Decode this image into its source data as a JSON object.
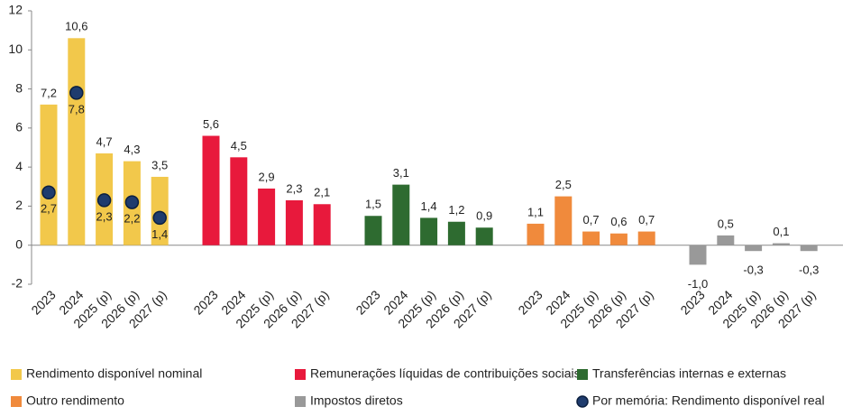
{
  "chart_data": {
    "type": "bar",
    "categories": [
      "2023",
      "2024",
      "2025 (p)",
      "2026 (p)",
      "2027 (p)"
    ],
    "series": [
      {
        "name": "Rendimento disponível nominal",
        "color": "#f2c84b",
        "values": [
          7.2,
          10.6,
          4.7,
          4.3,
          3.5
        ],
        "value_labels": [
          "7,2",
          "10,6",
          "4,7",
          "4,3",
          "3,5"
        ]
      },
      {
        "name": "Remunerações líquidas de contribuições sociais",
        "color": "#e8193c",
        "values": [
          5.6,
          4.5,
          2.9,
          2.3,
          2.1
        ],
        "value_labels": [
          "5,6",
          "4,5",
          "2,9",
          "2,3",
          "2,1"
        ]
      },
      {
        "name": "Transferências internas e externas",
        "color": "#2e6b30",
        "values": [
          1.5,
          3.1,
          1.4,
          1.2,
          0.9
        ],
        "value_labels": [
          "1,5",
          "3,1",
          "1,4",
          "1,2",
          "0,9"
        ]
      },
      {
        "name": "Outro rendimento",
        "color": "#f08a3c",
        "values": [
          1.1,
          2.5,
          0.7,
          0.6,
          0.7
        ],
        "value_labels": [
          "1,1",
          "2,5",
          "0,7",
          "0,6",
          "0,7"
        ]
      },
      {
        "name": "Impostos diretos",
        "color": "#999999",
        "values": [
          -1.0,
          0.5,
          -0.3,
          0.1,
          -0.3
        ],
        "value_labels": [
          "-1,0",
          "0,5",
          "-0,3",
          "0,1",
          "-0,3"
        ]
      },
      {
        "name": "Por memória: Rendimento disponível real",
        "color": "#1f3c6e",
        "style": "marker",
        "values": [
          2.7,
          7.8,
          2.3,
          2.2,
          1.4
        ],
        "value_labels": [
          "2,7",
          "7,8",
          "2,3",
          "2,2",
          "1,4"
        ]
      }
    ],
    "ylim": [
      -2,
      12
    ],
    "yticks": [
      -2,
      0,
      2,
      4,
      6,
      8,
      10,
      12
    ],
    "legend": "bottom"
  }
}
